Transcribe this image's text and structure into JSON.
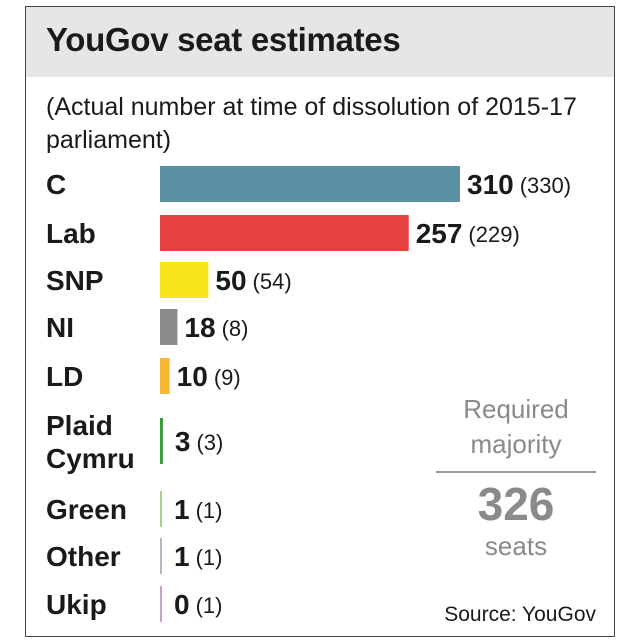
{
  "chart_data": {
    "type": "bar",
    "title": "YouGov seat estimates",
    "subtitle": "(Actual number at time of dissolution of 2015-17 parliament)",
    "categories": [
      "C",
      "Lab",
      "SNP",
      "NI",
      "LD",
      "Plaid Cymru",
      "Green",
      "Other",
      "Ukip"
    ],
    "series": [
      {
        "name": "",
        "values": [
          310,
          257,
          50,
          18,
          10,
          3,
          1,
          1,
          0
        ]
      }
    ],
    "previous": [
      330,
      229,
      54,
      8,
      9,
      3,
      1,
      1,
      1
    ],
    "colors": [
      "#5b8fa3",
      "#e84040",
      "#f5e51a",
      "#8c8c8c",
      "#f7b733",
      "#3a9a3a",
      "#a8d08d",
      "#b0b8c8",
      "#c9a2c9"
    ],
    "orientation": "horizontal",
    "grid": false,
    "required_majority": {
      "label_line1": "Required",
      "label_line2": "majority",
      "value": "326",
      "unit": "seats"
    },
    "source": "Source: YouGov"
  }
}
